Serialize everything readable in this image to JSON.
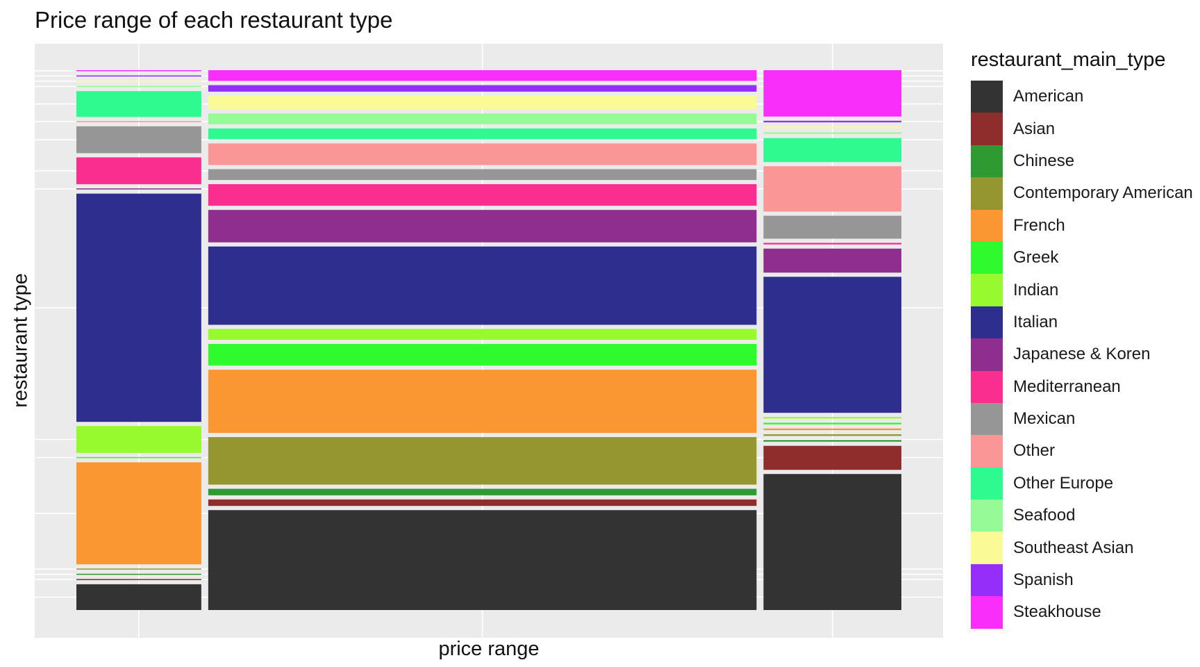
{
  "chart_data": {
    "type": "mosaic",
    "title": "Price range of each restaurant type",
    "xlabel": "price range",
    "ylabel": "restaurant type",
    "legend_title": "restaurant_main_type",
    "legend_position": "right",
    "grid": true,
    "background": "#ebebeb",
    "categories": [
      "American",
      "Asian",
      "Chinese",
      "Contemporary American",
      "French",
      "Greek",
      "Indian",
      "Italian",
      "Japanese & Koren",
      "Mediterranean",
      "Mexican",
      "Other",
      "Other Europe",
      "Seafood",
      "Southeast Asian",
      "Spanish",
      "Steakhouse"
    ],
    "colors": {
      "American": "#333333",
      "Asian": "#8f2d2d",
      "Chinese": "#2f9932",
      "Contemporary American": "#969630",
      "French": "#fa9732",
      "Greek": "#2efa2e",
      "Indian": "#96fa2e",
      "Italian": "#2e2e8f",
      "Japanese & Koren": "#8f2e8f",
      "Mediterranean": "#fa2e8f",
      "Mexican": "#969696",
      "Other": "#fa9696",
      "Other Europe": "#2efa8f",
      "Seafood": "#96fa96",
      "Southeast Asian": "#fafa96",
      "Spanish": "#962efa",
      "Steakhouse": "#fa2efa"
    },
    "columns": [
      {
        "width": 0.154,
        "segments": [
          {
            "category": "American",
            "value": 0.048
          },
          {
            "category": "Asian",
            "value": 0.002
          },
          {
            "category": "Chinese",
            "value": 0.002
          },
          {
            "category": "Contemporary American",
            "value": 0.002
          },
          {
            "category": "French",
            "value": 0.19
          },
          {
            "category": "Greek",
            "value": 0.002
          },
          {
            "category": "Indian",
            "value": 0.05
          },
          {
            "category": "Italian",
            "value": 0.425
          },
          {
            "category": "Japanese & Koren",
            "value": 0.002
          },
          {
            "category": "Mediterranean",
            "value": 0.05
          },
          {
            "category": "Mexican",
            "value": 0.05
          },
          {
            "category": "Other",
            "value": 0.002
          },
          {
            "category": "Other Europe",
            "value": 0.048
          },
          {
            "category": "Seafood",
            "value": 0.002
          },
          {
            "category": "Southeast Asian",
            "value": 0.002
          },
          {
            "category": "Spanish",
            "value": 0.002
          },
          {
            "category": "Steakhouse",
            "value": 0.002
          }
        ]
      },
      {
        "width": 0.676,
        "segments": [
          {
            "category": "American",
            "value": 0.185
          },
          {
            "category": "Asian",
            "value": 0.012
          },
          {
            "category": "Chinese",
            "value": 0.012
          },
          {
            "category": "Contemporary American",
            "value": 0.088
          },
          {
            "category": "French",
            "value": 0.117
          },
          {
            "category": "Greek",
            "value": 0.04
          },
          {
            "category": "Indian",
            "value": 0.02
          },
          {
            "category": "Italian",
            "value": 0.145
          },
          {
            "category": "Japanese & Koren",
            "value": 0.06
          },
          {
            "category": "Mediterranean",
            "value": 0.04
          },
          {
            "category": "Mexican",
            "value": 0.02
          },
          {
            "category": "Other",
            "value": 0.04
          },
          {
            "category": "Other Europe",
            "value": 0.02
          },
          {
            "category": "Seafood",
            "value": 0.02
          },
          {
            "category": "Southeast Asian",
            "value": 0.025
          },
          {
            "category": "Spanish",
            "value": 0.012
          },
          {
            "category": "Steakhouse",
            "value": 0.02
          }
        ]
      },
      {
        "width": 0.17,
        "segments": [
          {
            "category": "American",
            "value": 0.255
          },
          {
            "category": "Asian",
            "value": 0.045
          },
          {
            "category": "Chinese",
            "value": 0.003
          },
          {
            "category": "Contemporary American",
            "value": 0.003
          },
          {
            "category": "French",
            "value": 0.003
          },
          {
            "category": "Greek",
            "value": 0.003
          },
          {
            "category": "Indian",
            "value": 0.003
          },
          {
            "category": "Italian",
            "value": 0.255
          },
          {
            "category": "Japanese & Koren",
            "value": 0.045
          },
          {
            "category": "Mediterranean",
            "value": 0.003
          },
          {
            "category": "Mexican",
            "value": 0.043
          },
          {
            "category": "Other",
            "value": 0.085
          },
          {
            "category": "Other Europe",
            "value": 0.045
          },
          {
            "category": "Seafood",
            "value": 0.003
          },
          {
            "category": "Southeast Asian",
            "value": 0.003
          },
          {
            "category": "Spanish",
            "value": 0.003
          },
          {
            "category": "Steakhouse",
            "value": 0.087
          }
        ]
      }
    ]
  }
}
